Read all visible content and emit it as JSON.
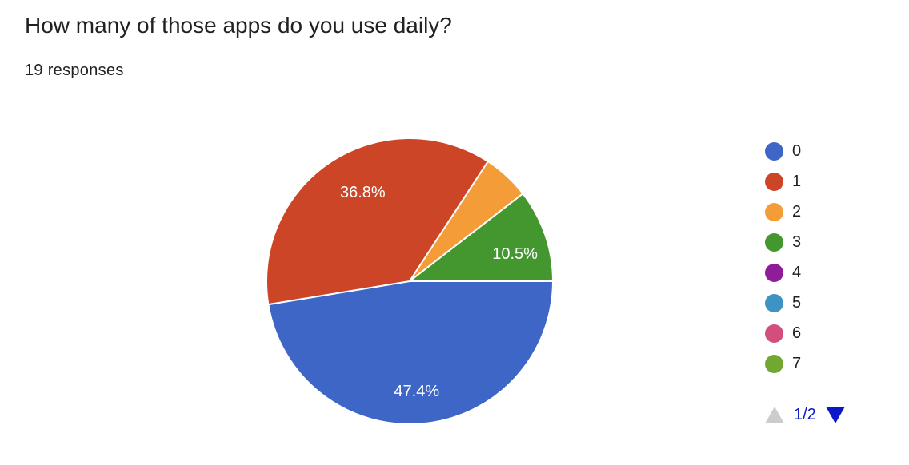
{
  "question": {
    "title": "How many of those apps do you use daily?",
    "responses": "19 responses"
  },
  "chart_data": {
    "type": "pie",
    "title": "How many of those apps do you use daily?",
    "total_responses": 19,
    "categories": [
      "0",
      "1",
      "2",
      "3",
      "4",
      "5",
      "6",
      "7"
    ],
    "values": [
      47.4,
      36.8,
      5.3,
      10.5,
      0,
      0,
      0,
      0
    ],
    "labels": [
      "47.4%",
      "36.8%",
      "",
      "10.5%",
      "",
      "",
      "",
      ""
    ],
    "colors": [
      "#3e66c7",
      "#cc4527",
      "#f39c38",
      "#44962f",
      "#8f1d9a",
      "#3e93c4",
      "#d34e7c",
      "#72a832"
    ],
    "legend_placement": "right"
  },
  "pager": {
    "text": "1/2"
  }
}
